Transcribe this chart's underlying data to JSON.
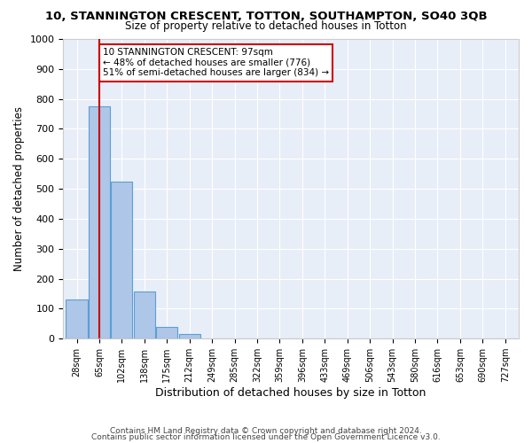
{
  "title": "10, STANNINGTON CRESCENT, TOTTON, SOUTHAMPTON, SO40 3QB",
  "subtitle": "Size of property relative to detached houses in Totton",
  "xlabel": "Distribution of detached houses by size in Totton",
  "ylabel": "Number of detached properties",
  "bar_values": [
    130,
    776,
    524,
    157,
    38,
    14,
    0,
    0,
    0,
    0,
    0,
    0,
    0,
    0,
    0,
    0,
    0,
    0,
    0,
    0
  ],
  "bin_labels": [
    "28sqm",
    "65sqm",
    "102sqm",
    "138sqm",
    "175sqm",
    "212sqm",
    "249sqm",
    "285sqm",
    "322sqm",
    "359sqm",
    "396sqm",
    "433sqm",
    "469sqm",
    "506sqm",
    "543sqm",
    "580sqm",
    "616sqm",
    "653sqm",
    "690sqm",
    "727sqm"
  ],
  "bar_color": "#aec6e8",
  "bar_edge_color": "#5a9fd4",
  "bg_color": "#e8eef8",
  "grid_color": "#ffffff",
  "annotation_box_color": "#cc0000",
  "property_label": "10 STANNINGTON CRESCENT: 97sqm",
  "smaller_pct": 48,
  "smaller_count": 776,
  "larger_pct": 51,
  "larger_count": 834,
  "vline_bin_index": 1,
  "ylim": [
    0,
    1000
  ],
  "yticks": [
    0,
    100,
    200,
    300,
    400,
    500,
    600,
    700,
    800,
    900,
    1000
  ],
  "footer1": "Contains HM Land Registry data © Crown copyright and database right 2024.",
  "footer2": "Contains public sector information licensed under the Open Government Licence v3.0."
}
